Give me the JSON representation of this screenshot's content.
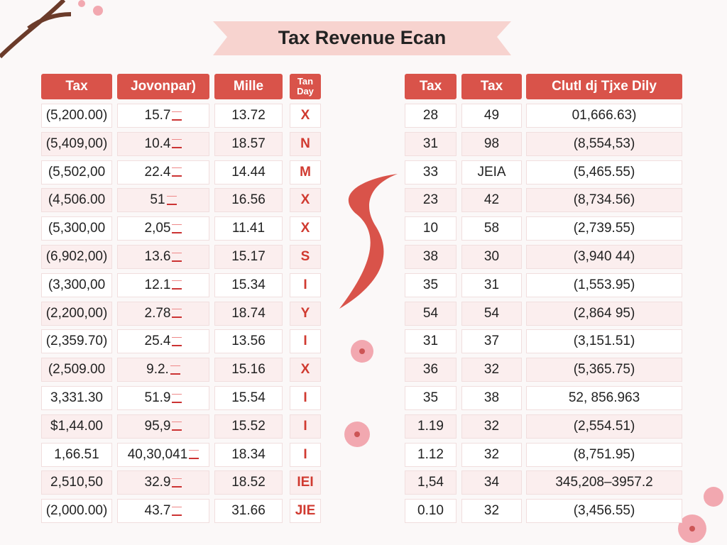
{
  "header": {
    "title": "Tax Revenue Ecan"
  },
  "left_table": {
    "headers": [
      "Tax",
      "Jovonpar)",
      "Mille",
      "Tan Day"
    ],
    "rows": [
      [
        "(5,200.00)",
        "15.7",
        "13.72",
        "X"
      ],
      [
        "(5,409,00)",
        "10.4",
        "18.57",
        "N"
      ],
      [
        "(5,502,00",
        "22.4",
        "14.44",
        "M"
      ],
      [
        "(4,506.00",
        "51",
        "16.56",
        "X"
      ],
      [
        "(5,300,00",
        "2,05",
        "11.41",
        "X"
      ],
      [
        "(6,902,00)",
        "13.6",
        "15.17",
        "S"
      ],
      [
        "(3,300,00",
        "12.1",
        "15.34",
        "I"
      ],
      [
        "(2,200,00)",
        "2.78",
        "18.74",
        "Y"
      ],
      [
        "(2,359.70)",
        "25.4",
        "13.56",
        "I"
      ],
      [
        "(2,509.00",
        "9.2.",
        "15.16",
        "X"
      ],
      [
        "3,331.30",
        "51.9",
        "15.54",
        "I"
      ],
      [
        "$1,44.00",
        "95,9",
        "15.52",
        "I"
      ],
      [
        "1,66.51",
        "40,30,041",
        "18.34",
        "I"
      ],
      [
        "2,510,50",
        "32.9",
        "18.52",
        "IEI"
      ],
      [
        "(2,000.00)",
        "43.7",
        "31.66",
        "JIE"
      ]
    ]
  },
  "right_table": {
    "headers": [
      "Tax",
      "Tax",
      "Clutl dj Tjxe Dily"
    ],
    "rows": [
      [
        "28",
        "49",
        "01,666.63)"
      ],
      [
        "31",
        "98",
        "(8,554,53)"
      ],
      [
        "33",
        "JEIA",
        "(5,465.55)"
      ],
      [
        "23",
        "42",
        "(8,734.56)"
      ],
      [
        "10",
        "58",
        "(2,739.55)"
      ],
      [
        "38",
        "30",
        "(3,940 44)"
      ],
      [
        "35",
        "31",
        "(1,553.95)"
      ],
      [
        "54",
        "54",
        "(2,864 95)"
      ],
      [
        "31",
        "37",
        "(3,151.51)"
      ],
      [
        "36",
        "32",
        "(5,365.75)"
      ],
      [
        "35",
        "38",
        "52, 856.963"
      ],
      [
        "1.19",
        "32",
        "(2,554.51)"
      ],
      [
        "1.12",
        "32",
        "(8,751.95)"
      ],
      [
        "1,54",
        "34",
        "345,208–3957.2"
      ],
      [
        "0.10",
        "32",
        "(3,456.55)"
      ]
    ]
  }
}
